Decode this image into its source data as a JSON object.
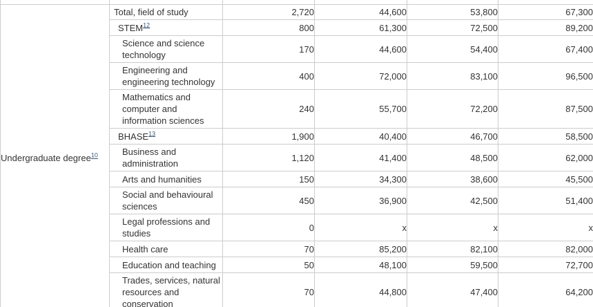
{
  "table": {
    "group": {
      "label": "Undergraduate degree",
      "footnote": "10"
    },
    "rows": [
      {
        "label": "Total, field of study",
        "indent": 0,
        "footnote": "",
        "values": [
          "2,720",
          "44,600",
          "53,800",
          "67,300"
        ]
      },
      {
        "label": "STEM",
        "indent": 1,
        "footnote": "12",
        "values": [
          "800",
          "61,300",
          "72,500",
          "89,200"
        ]
      },
      {
        "label": "Science and science technology",
        "indent": 2,
        "footnote": "",
        "values": [
          "170",
          "44,600",
          "54,400",
          "67,400"
        ]
      },
      {
        "label": "Engineering and engineering technology",
        "indent": 2,
        "footnote": "",
        "values": [
          "400",
          "72,000",
          "83,100",
          "96,500"
        ]
      },
      {
        "label": "Mathematics and computer and information sciences",
        "indent": 2,
        "footnote": "",
        "values": [
          "240",
          "55,700",
          "72,200",
          "87,500"
        ]
      },
      {
        "label": "BHASE",
        "indent": 1,
        "footnote": "13",
        "values": [
          "1,900",
          "40,400",
          "46,700",
          "58,500"
        ]
      },
      {
        "label": "Business and administration",
        "indent": 2,
        "footnote": "",
        "values": [
          "1,120",
          "41,400",
          "48,500",
          "62,000"
        ]
      },
      {
        "label": "Arts and humanities",
        "indent": 2,
        "footnote": "",
        "values": [
          "150",
          "34,300",
          "38,600",
          "45,500"
        ]
      },
      {
        "label": "Social and behavioural sciences",
        "indent": 2,
        "footnote": "",
        "values": [
          "450",
          "36,900",
          "42,500",
          "51,400"
        ]
      },
      {
        "label": "Legal professions and studies",
        "indent": 2,
        "footnote": "",
        "values": [
          "0",
          "x",
          "x",
          "x"
        ]
      },
      {
        "label": "Health care",
        "indent": 2,
        "footnote": "",
        "values": [
          "70",
          "85,200",
          "82,100",
          "82,000"
        ]
      },
      {
        "label": "Education and teaching",
        "indent": 2,
        "footnote": "",
        "values": [
          "50",
          "48,100",
          "59,500",
          "72,700"
        ]
      },
      {
        "label": "Trades, services, natural resources and conservation",
        "indent": 2,
        "footnote": "",
        "values": [
          "70",
          "44,800",
          "47,400",
          "64,200"
        ]
      }
    ],
    "colors": {
      "text": "#333333",
      "footnote_link": "#3a5a78",
      "border": "#cccccc",
      "background": "#ffffff"
    }
  }
}
